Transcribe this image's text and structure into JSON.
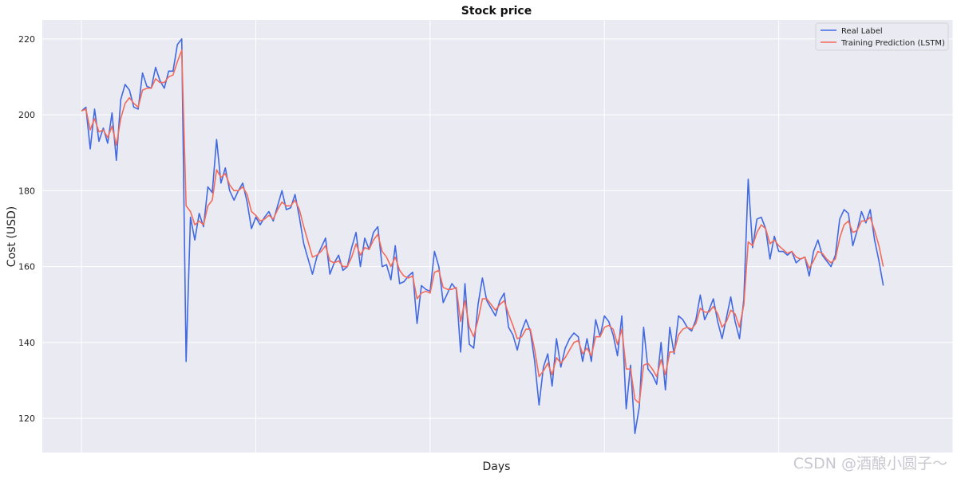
{
  "chart_data": {
    "type": "line",
    "title": "Stock price",
    "xlabel": "Days",
    "ylabel": "Cost (USD)",
    "ylim": [
      111,
      225
    ],
    "xlim": [
      -9,
      200
    ],
    "yticks": [
      120,
      140,
      160,
      180,
      200,
      220
    ],
    "grid": true,
    "legend_position": "top-right",
    "series": [
      {
        "name": "Real Label",
        "color": "#4169e1",
        "values": [
          201,
          202,
          191,
          201.5,
          193,
          196.5,
          192.5,
          200.5,
          188,
          204,
          208,
          206.5,
          202,
          201.5,
          211,
          207.5,
          207,
          212.5,
          209,
          207,
          211.5,
          211.5,
          218.5,
          220,
          135,
          173,
          167,
          174,
          170.5,
          181,
          179.5,
          193.5,
          182,
          186,
          180,
          177.5,
          180,
          182,
          177,
          170,
          173,
          171,
          173,
          174.5,
          172,
          176,
          180,
          175,
          175.5,
          179,
          173,
          166,
          162,
          158,
          162.5,
          165,
          167.5,
          158,
          161,
          163,
          159,
          160,
          165,
          169,
          160,
          167.5,
          164.5,
          169,
          170.5,
          160,
          160.5,
          156.5,
          165.5,
          155.5,
          156,
          157.5,
          158.5,
          145,
          155,
          154,
          153.5,
          164,
          160,
          150.5,
          153,
          155.5,
          154,
          137.5,
          155.5,
          139.5,
          138.5,
          150,
          157,
          151,
          149,
          147,
          151,
          153,
          144,
          142,
          138,
          143,
          146,
          143,
          135,
          123.5,
          133.5,
          137,
          128.5,
          141,
          133.5,
          138.5,
          141,
          142.5,
          141.5,
          135,
          141,
          135,
          146,
          141.5,
          147,
          145.5,
          142,
          136.5,
          147,
          122.5,
          134,
          116,
          123,
          144,
          133,
          131.5,
          129,
          140,
          127.5,
          144,
          137,
          147,
          146,
          144,
          143,
          146,
          152.5,
          146,
          148.5,
          151.5,
          145.5,
          141,
          146.5,
          152,
          145.5,
          141,
          151.5,
          183,
          165,
          172.5,
          173,
          170,
          162,
          168,
          164,
          164,
          163,
          164,
          161,
          162,
          162.5,
          157.5,
          164,
          167,
          163,
          161.5,
          160,
          163,
          172.5,
          175,
          174,
          165.5,
          169.5,
          174.5,
          171.5,
          175,
          167,
          161.5,
          155
        ]
      },
      {
        "name": "Training Prediction (LSTM)",
        "color": "#f26b5b",
        "values": [
          201,
          201.5,
          196,
          199,
          195.5,
          196,
          194,
          197,
          192,
          199,
          203,
          204.5,
          203,
          202,
          206.5,
          207,
          207,
          209.5,
          208.5,
          208.5,
          210,
          210.5,
          214,
          217,
          176,
          174.5,
          171,
          172,
          171,
          176,
          177.5,
          185.5,
          183.5,
          184.5,
          181.5,
          180,
          180,
          181,
          179,
          174.5,
          173.5,
          172,
          172.5,
          173.5,
          172.5,
          175,
          177,
          176,
          176,
          177.5,
          175,
          170.5,
          166.5,
          162.5,
          163,
          164,
          165.5,
          161.5,
          161,
          161.5,
          160,
          160,
          162.5,
          166,
          163,
          165,
          164.5,
          167,
          168.5,
          164,
          162.5,
          160,
          162.5,
          159,
          157.5,
          157,
          157.5,
          151.5,
          153,
          153.5,
          153,
          158.5,
          159,
          154.5,
          154,
          154,
          154.5,
          145.5,
          151,
          144,
          141.5,
          146,
          151.5,
          151.5,
          150,
          148.5,
          150,
          151,
          147.5,
          144.5,
          141,
          141.5,
          143.5,
          143.5,
          138,
          131,
          132.5,
          134.5,
          131.5,
          136,
          134.5,
          136,
          138,
          140,
          140.5,
          137,
          138.5,
          136.5,
          141.5,
          141.5,
          144,
          144.5,
          143.5,
          139.5,
          143.5,
          133,
          133,
          125,
          124,
          134,
          134.5,
          133,
          131,
          135.5,
          131.5,
          137.5,
          137.5,
          142,
          143.5,
          144,
          143.5,
          145,
          149,
          148,
          148,
          149.5,
          147.5,
          144,
          145.5,
          148.5,
          147.5,
          144,
          150,
          166.5,
          165.5,
          169,
          171,
          170,
          166,
          167,
          165.5,
          164.5,
          163.5,
          164,
          162.5,
          162,
          162.5,
          159.5,
          161.5,
          164,
          163.5,
          162,
          161,
          162,
          167.5,
          171,
          172,
          169,
          169.5,
          172,
          172,
          173,
          169.5,
          165.5,
          160
        ]
      }
    ]
  },
  "watermark": "CSDN @酒酿小圆子～"
}
